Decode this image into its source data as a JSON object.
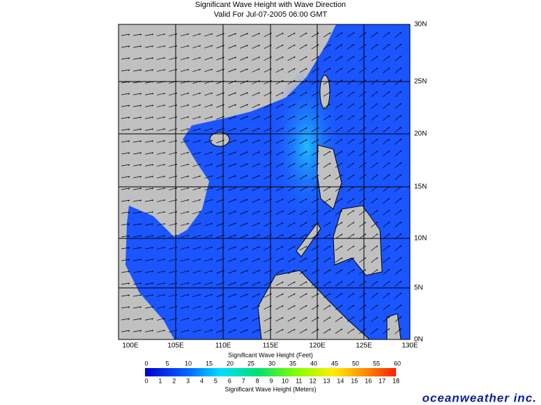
{
  "header": {
    "title": "Significant Wave Height with Wave Direction",
    "subtitle": "Valid For Jul-07-2005 06:00 GMT"
  },
  "map": {
    "longitude_labels": [
      "100E",
      "105E",
      "110E",
      "115E",
      "120E",
      "125E",
      "130E"
    ],
    "latitude_labels": [
      "30N",
      "25N",
      "20N",
      "15N",
      "10N",
      "5N",
      "0N"
    ]
  },
  "colorbar": {
    "feet_title": "Significant Wave Height (Feet)",
    "feet_labels": [
      0,
      5,
      10,
      15,
      20,
      25,
      30,
      35,
      40,
      45,
      50,
      55,
      60
    ],
    "meters_title": "Significant Wave Height (Meters)",
    "meters_labels": [
      0,
      1,
      2,
      3,
      4,
      5,
      6,
      7,
      8,
      9,
      10,
      11,
      12,
      13,
      14,
      15,
      16,
      17,
      18
    ]
  },
  "logo": "oceanweather inc."
}
